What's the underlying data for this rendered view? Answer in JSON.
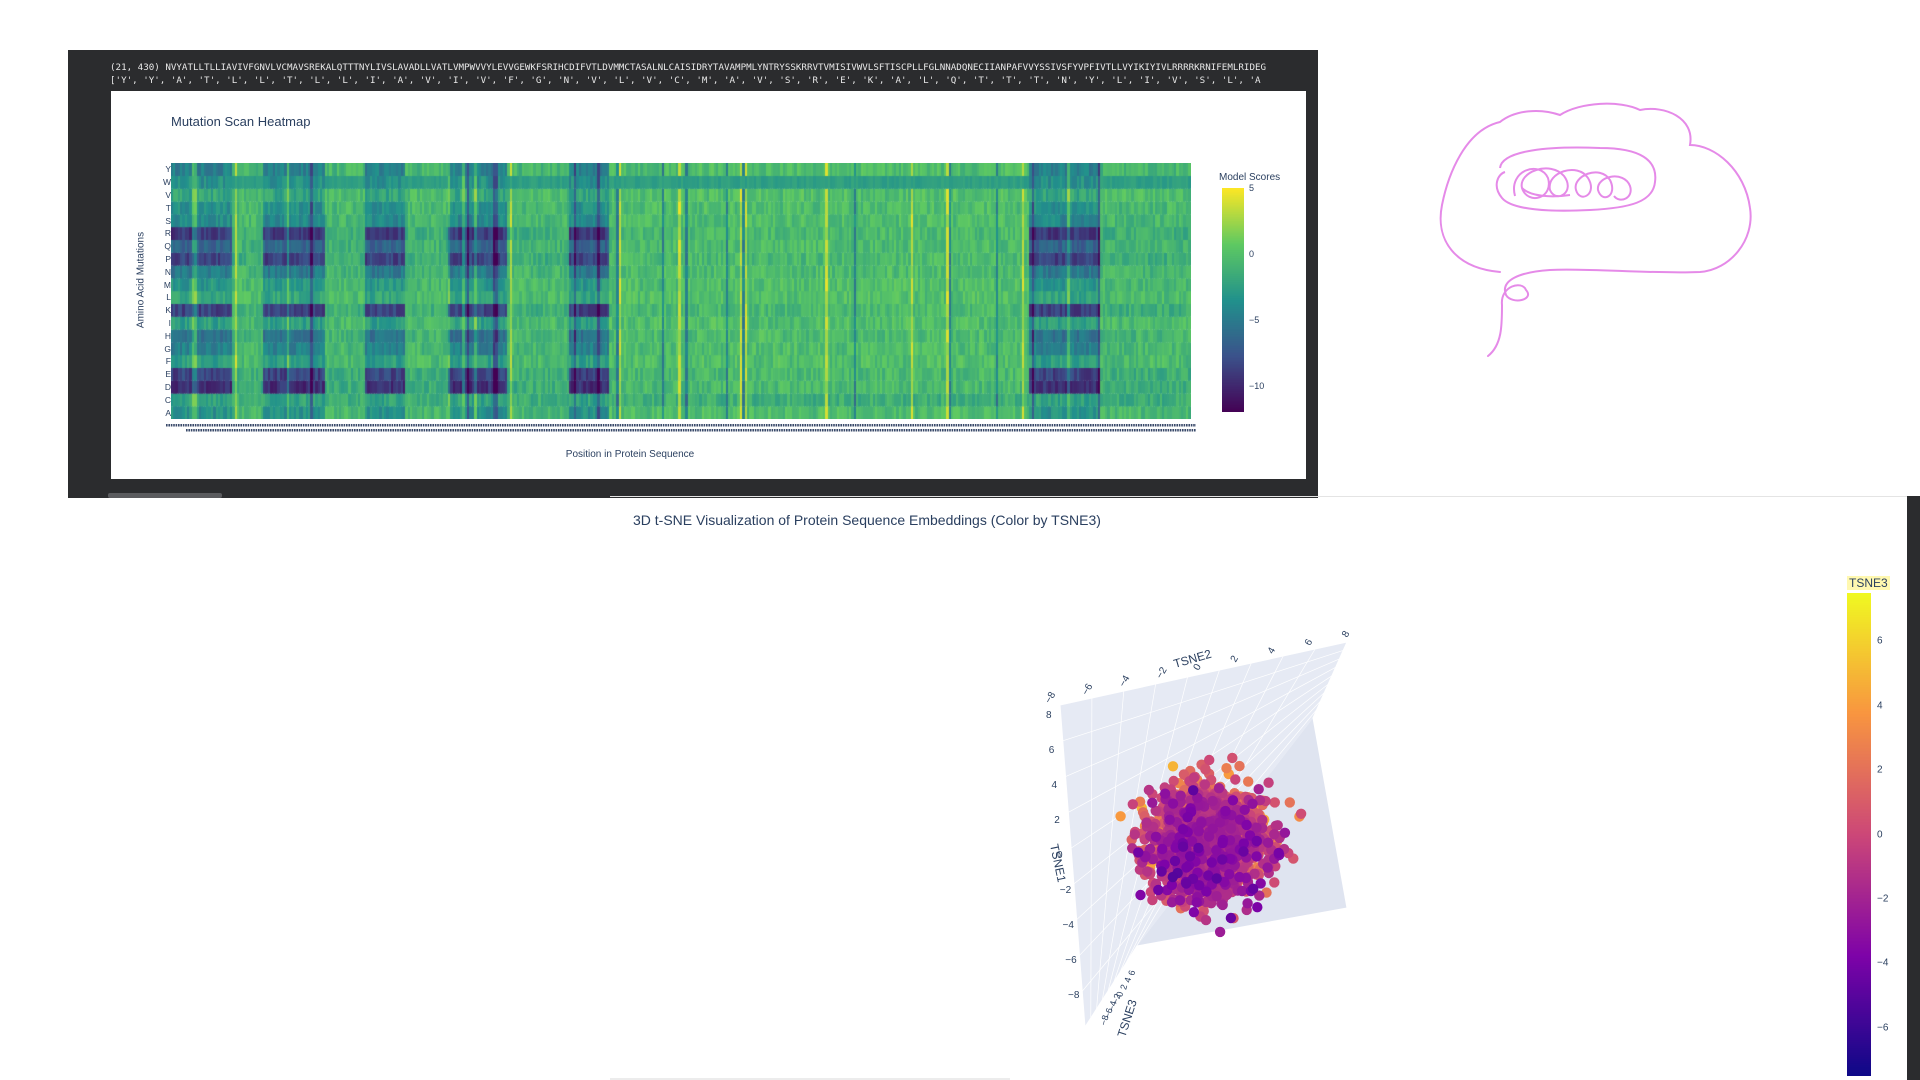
{
  "cell_output": {
    "line1": "(21, 430) NVYATLLTLLIAVIVFGNVLVCMAVSREKALQTTTNYLIVSLAVADLLVATLVMPWVVYLEVVGEWKFSRIHCDIFVTLDVMMCTASALNLCAISIDRYTAVAMPMLYNTRYSSKRRVTVMISIVWVLSFTISCPLLFGLNNADQNECIIANPAFVVYSSIVSFYVPFIVTLLVYIKIYIVLRRRRKRNIFEMLRIDEG",
    "line2": "['Y', 'Y', 'A', 'T', 'L', 'L', 'T', 'L', 'L', 'I', 'A', 'V', 'I', 'V', 'F', 'G', 'N', 'V', 'L', 'V', 'C', 'M', 'A', 'V', 'S', 'R', 'E', 'K', 'A', 'L', 'Q', 'T', 'T', 'T', 'N', 'Y', 'L', 'I', 'V', 'S', 'L', 'A"
  },
  "chart_data": [
    {
      "type": "heatmap",
      "title": "Mutation Scan Heatmap",
      "xlabel": "Position in Protein Sequence",
      "ylabel": "Amino Acid Mutations",
      "y_categories": [
        "A",
        "C",
        "D",
        "E",
        "F",
        "G",
        "H",
        "I",
        "K",
        "L",
        "M",
        "N",
        "P",
        "Q",
        "R",
        "S",
        "T",
        "V",
        "W",
        "Y"
      ],
      "x_count": 430,
      "colorbar": {
        "title": "Model Scores",
        "ticks": [
          5,
          0,
          -5,
          -10
        ],
        "range": [
          -12,
          5
        ],
        "colorscale": "Viridis"
      },
      "low_score_regions": [
        [
          0,
          0.06
        ],
        [
          0.09,
          0.15
        ],
        [
          0.19,
          0.23
        ],
        [
          0.27,
          0.33
        ],
        [
          0.39,
          0.43
        ],
        [
          0.84,
          0.91
        ]
      ],
      "mutation_profile": {
        "A": 0.35,
        "C": 0.1,
        "D": 0.95,
        "E": 0.85,
        "F": 0.25,
        "G": 0.45,
        "H": 0.55,
        "I": 0.25,
        "K": 0.85,
        "L": 0.2,
        "M": 0.3,
        "N": 0.5,
        "P": 0.85,
        "Q": 0.65,
        "R": 0.9,
        "S": 0.4,
        "T": 0.35,
        "V": 0.2,
        "W": 0.35,
        "Y": 0.45
      }
    },
    {
      "type": "scatter",
      "title": "3D t-SNE Visualization of Protein Sequence Embeddings (Color by TSNE3)",
      "axes": {
        "x": "TSNE2",
        "y": "TSNE1",
        "z": "TSNE3"
      },
      "axis_ticks": {
        "TSNE2": [
          "−8",
          "−6",
          "−4",
          "−2",
          "0",
          "2",
          "4",
          "6",
          "8"
        ],
        "TSNE1": [
          "8",
          "6",
          "4",
          "2",
          "0",
          "−2",
          "−4",
          "−6",
          "−8"
        ],
        "TSNE3": [
          "6",
          "4",
          "2",
          "0",
          "−2",
          "−4",
          "−6",
          "−8"
        ]
      },
      "axis_range": [
        -8,
        8
      ],
      "colorbar": {
        "title": "TSNE3",
        "ticks": [
          6,
          4,
          2,
          0,
          -2,
          -4,
          -6
        ],
        "range": [
          -7.5,
          7.5
        ],
        "colorscale": "Plasma"
      },
      "point_count": 1400
    }
  ]
}
